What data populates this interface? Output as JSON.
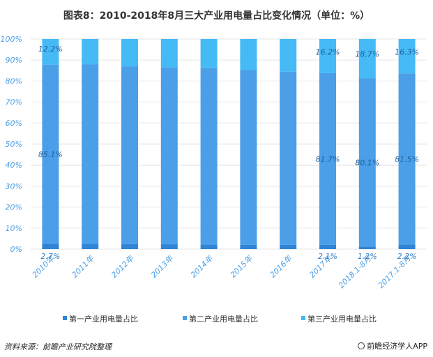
{
  "chart_data": {
    "type": "bar",
    "stacked": true,
    "title": "图表8：2010-2018年8月三大产业用电量占比变化情况（单位：%）",
    "categories": [
      "2010年",
      "2011年",
      "2012年",
      "2013年",
      "2014年",
      "2015年",
      "2016年",
      "2017年",
      "2018.1-8月",
      "2017.1-8月"
    ],
    "series": [
      {
        "name": "第一产业用电量占比",
        "color": "#2f84d6",
        "values": [
          2.7,
          2.5,
          2.4,
          2.3,
          2.2,
          2.1,
          2.1,
          2.1,
          1.2,
          2.2
        ]
      },
      {
        "name": "第二产业用电量占比",
        "color": "#4a9fe8",
        "values": [
          85.1,
          85.4,
          84.5,
          84.2,
          84.0,
          83.0,
          82.4,
          81.7,
          80.1,
          81.5
        ]
      },
      {
        "name": "第三产业用电量占比",
        "color": "#45baf5",
        "values": [
          12.2,
          12.1,
          13.1,
          13.5,
          13.8,
          14.9,
          15.5,
          16.2,
          18.7,
          16.3
        ]
      }
    ],
    "data_labels": {
      "series0": {
        "0": "2.7%",
        "7": "2.1%",
        "8": "1.2%",
        "9": "2.2%"
      },
      "series1": {
        "0": "85.1%",
        "7": "81.7%",
        "8": "80.1%",
        "9": "81.5%"
      },
      "series2": {
        "0": "12.2%",
        "7": "16.2%",
        "8": "18.7%",
        "9": "16.3%"
      }
    },
    "yticks": [
      "0%",
      "10%",
      "20%",
      "30%",
      "40%",
      "50%",
      "60%",
      "70%",
      "80%",
      "90%",
      "100%"
    ],
    "ylim": [
      0,
      100
    ],
    "legend_position": "bottom"
  },
  "footer": {
    "source": "资料来源：前瞻产业研究院整理",
    "brand": "前瞻经济学人APP"
  }
}
